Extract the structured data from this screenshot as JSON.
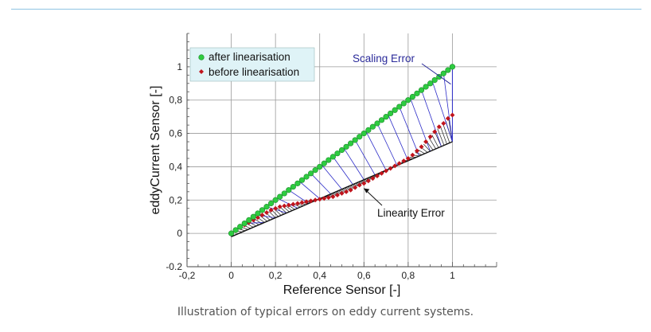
{
  "caption": "Illustration of typical errors on eddy current systems.",
  "colors": {
    "top_rule": "#8fc4e3",
    "after": "#2ecc40",
    "before": "#c0141c",
    "scaling_hatch": "#2c2cc8",
    "linearity_hatch": "#222222",
    "annotation_scaling": "#2a2a9a",
    "grid": "#9a9a9a",
    "legend_bg": "#dff3f7"
  },
  "chart_data": {
    "type": "scatter",
    "xlabel": "Reference Sensor [-]",
    "ylabel": "eddyCurrent Sensor [-]",
    "xlim": [
      -0.2,
      1.2
    ],
    "ylim": [
      -0.2,
      1.2
    ],
    "x_ticks": [
      -0.2,
      0,
      0.2,
      0.4,
      0.6,
      0.8,
      1
    ],
    "x_tick_labels": [
      "-0,2",
      "0",
      "0,2",
      "0,4",
      "0,6",
      "0,8",
      "1"
    ],
    "y_ticks": [
      -0.2,
      0,
      0.2,
      0.4,
      0.6,
      0.8,
      1
    ],
    "y_tick_labels": [
      "-0.2",
      "0",
      "0,2",
      "0,4",
      "0,6",
      "0,8",
      "1"
    ],
    "grid": true,
    "legend_position": "top-left",
    "series": [
      {
        "name": "after linearisation",
        "marker": "circle",
        "x": [
          0,
          0.02,
          0.04,
          0.06,
          0.08,
          0.1,
          0.12,
          0.14,
          0.16,
          0.18,
          0.2,
          0.22,
          0.24,
          0.26,
          0.28,
          0.3,
          0.32,
          0.34,
          0.36,
          0.38,
          0.4,
          0.42,
          0.44,
          0.46,
          0.48,
          0.5,
          0.52,
          0.54,
          0.56,
          0.58,
          0.6,
          0.62,
          0.64,
          0.66,
          0.68,
          0.7,
          0.72,
          0.74,
          0.76,
          0.78,
          0.8,
          0.82,
          0.84,
          0.86,
          0.88,
          0.9,
          0.92,
          0.94,
          0.96,
          0.98,
          1.0
        ],
        "y": [
          0,
          0.02,
          0.04,
          0.06,
          0.08,
          0.1,
          0.12,
          0.14,
          0.16,
          0.18,
          0.2,
          0.22,
          0.24,
          0.26,
          0.28,
          0.3,
          0.32,
          0.34,
          0.36,
          0.38,
          0.4,
          0.42,
          0.44,
          0.46,
          0.48,
          0.5,
          0.52,
          0.54,
          0.56,
          0.58,
          0.6,
          0.62,
          0.64,
          0.66,
          0.68,
          0.7,
          0.72,
          0.74,
          0.76,
          0.78,
          0.8,
          0.82,
          0.84,
          0.86,
          0.88,
          0.9,
          0.92,
          0.94,
          0.96,
          0.98,
          1.0
        ]
      },
      {
        "name": "before linearisation",
        "marker": "diamond",
        "x": [
          0,
          0.02,
          0.04,
          0.06,
          0.08,
          0.1,
          0.12,
          0.14,
          0.16,
          0.18,
          0.2,
          0.22,
          0.24,
          0.26,
          0.28,
          0.3,
          0.32,
          0.34,
          0.36,
          0.38,
          0.4,
          0.42,
          0.44,
          0.46,
          0.48,
          0.5,
          0.52,
          0.54,
          0.56,
          0.58,
          0.6,
          0.62,
          0.64,
          0.66,
          0.68,
          0.7,
          0.72,
          0.74,
          0.76,
          0.78,
          0.8,
          0.82,
          0.84,
          0.86,
          0.88,
          0.9,
          0.92,
          0.94,
          0.96,
          0.98,
          1.0
        ],
        "y": [
          0,
          0.015,
          0.035,
          0.05,
          0.065,
          0.08,
          0.095,
          0.11,
          0.125,
          0.14,
          0.15,
          0.16,
          0.165,
          0.17,
          0.175,
          0.18,
          0.185,
          0.19,
          0.195,
          0.2,
          0.205,
          0.21,
          0.215,
          0.22,
          0.23,
          0.24,
          0.25,
          0.26,
          0.275,
          0.29,
          0.3,
          0.315,
          0.33,
          0.345,
          0.36,
          0.375,
          0.39,
          0.405,
          0.42,
          0.435,
          0.45,
          0.47,
          0.495,
          0.52,
          0.55,
          0.58,
          0.61,
          0.64,
          0.66,
          0.69,
          0.71
        ]
      }
    ],
    "reference_line": {
      "x": [
        0,
        1.0
      ],
      "y": [
        -0.02,
        0.55
      ]
    },
    "annotations": [
      {
        "text": "Scaling Error",
        "arrow_to": [
          1.0,
          0.8
        ]
      },
      {
        "text": "Linearity Error",
        "arrow_to": [
          0.6,
          0.27
        ]
      }
    ]
  }
}
